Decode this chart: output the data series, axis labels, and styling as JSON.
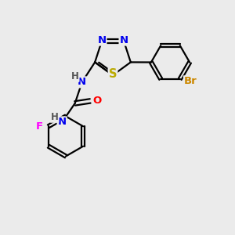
{
  "background_color": "#ebebeb",
  "bond_color": "#000000",
  "bond_width": 1.6,
  "atom_colors": {
    "N": "#0000ee",
    "S": "#bbaa00",
    "O": "#ff0000",
    "F": "#ff00ff",
    "Br": "#cc8800",
    "H": "#555555",
    "C": "#000000"
  },
  "font_size": 9.5
}
